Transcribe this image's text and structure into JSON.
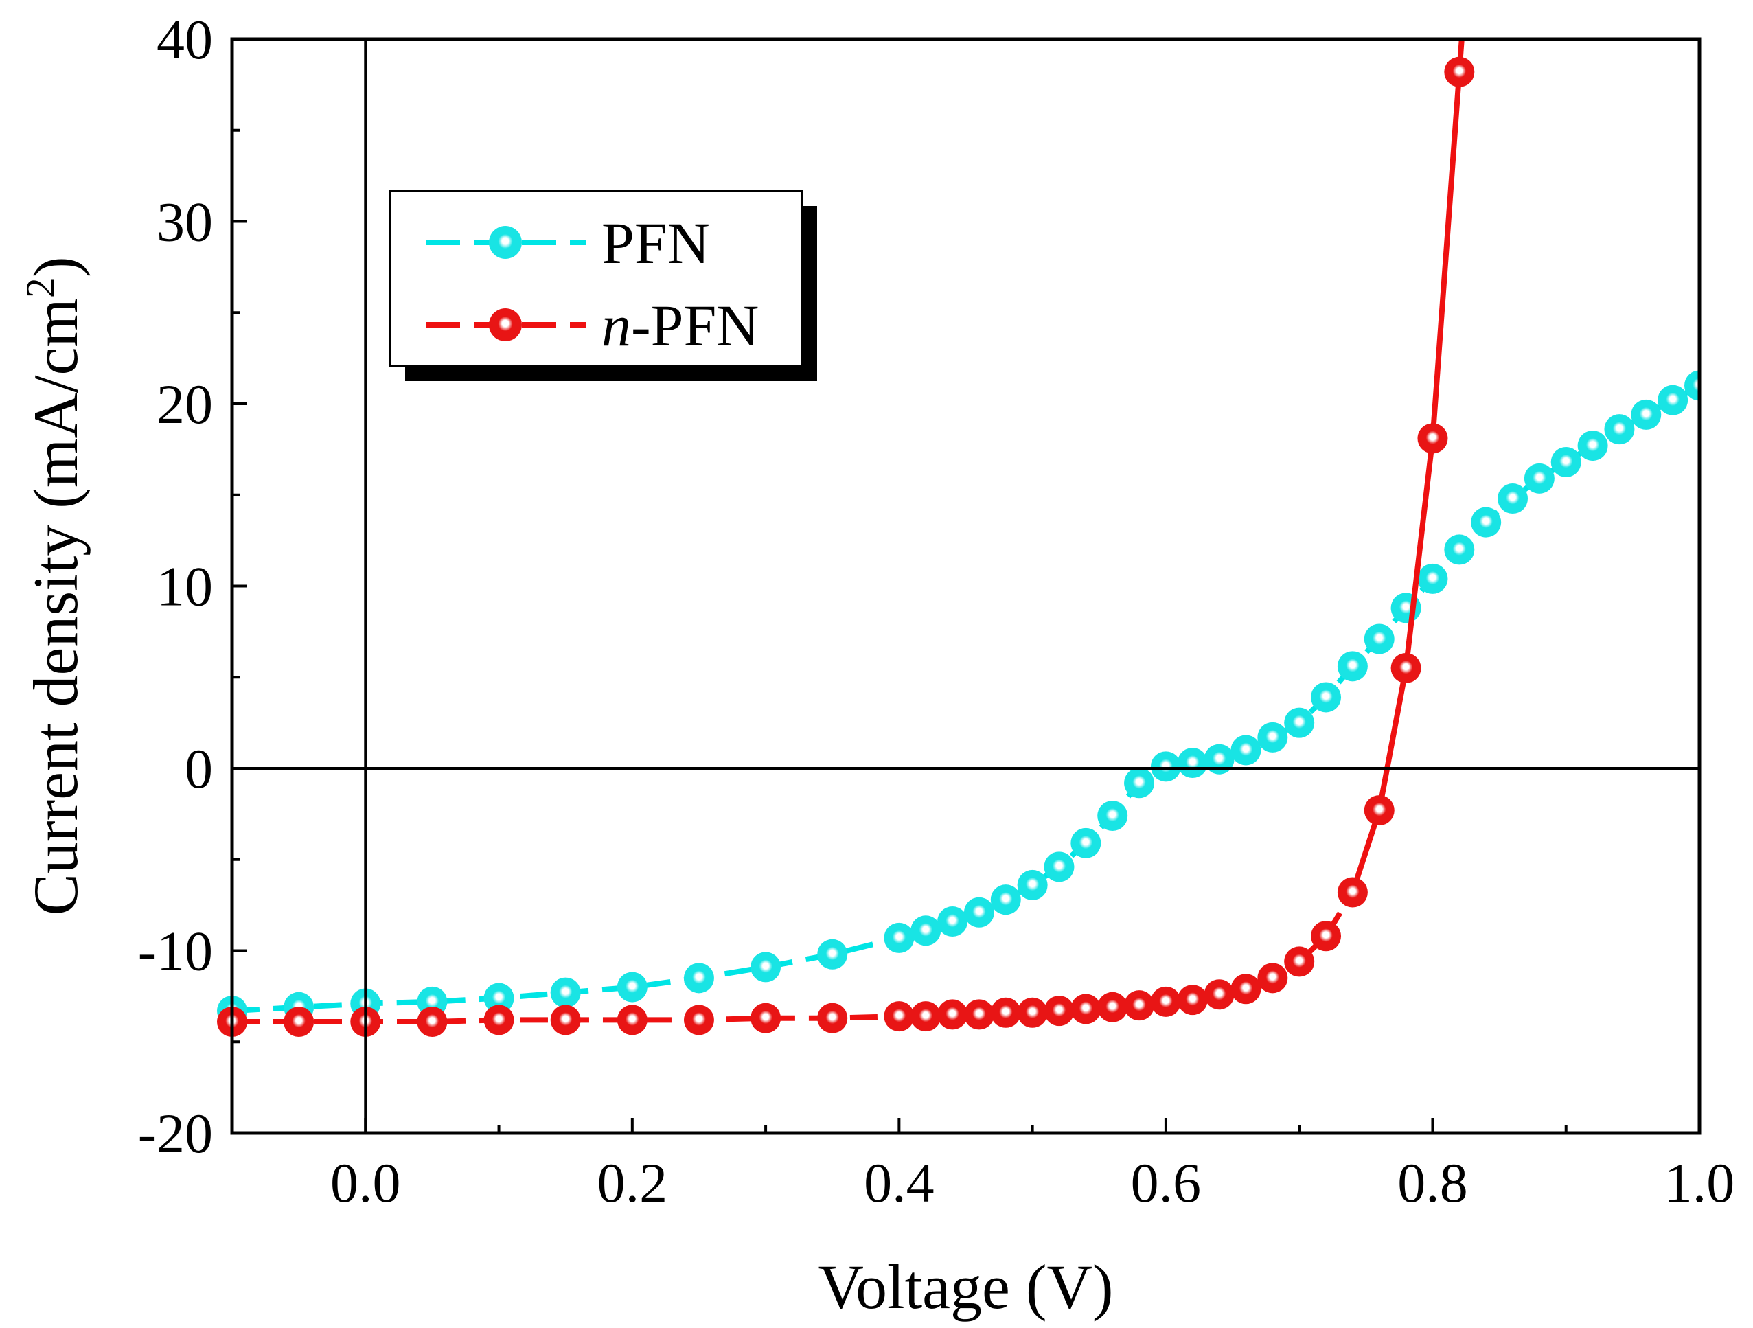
{
  "chart_data": {
    "type": "line",
    "title": "",
    "xlabel": "Voltage (V)",
    "ylabel_main": "Current density (mA/cm",
    "ylabel_sup": "2",
    "ylabel_close": ")",
    "xlim": [
      -0.1,
      1.0
    ],
    "ylim": [
      -20,
      40
    ],
    "x_ticks": [
      0.0,
      0.2,
      0.4,
      0.6,
      0.8,
      1.0
    ],
    "x_tick_labels": [
      "0.0",
      "0.2",
      "0.4",
      "0.6",
      "0.8",
      "1.0"
    ],
    "x_minor_ticks": [
      -0.1,
      0.1,
      0.3,
      0.5,
      0.7,
      0.9
    ],
    "y_ticks": [
      -20,
      -10,
      0,
      10,
      20,
      30,
      40
    ],
    "y_tick_labels": [
      "-20",
      "-10",
      "0",
      "10",
      "20",
      "30",
      "40"
    ],
    "y_minor_ticks": [
      -15,
      -5,
      5,
      15,
      25,
      35
    ],
    "zero_lines": {
      "x": 0,
      "y": 0
    },
    "legend": {
      "position": "top-left",
      "entries": [
        {
          "label": "PFN",
          "prefix_italic": "",
          "suffix": "PFN"
        },
        {
          "label": "n-PFN",
          "prefix_italic": "n",
          "suffix": "-PFN"
        }
      ]
    },
    "series": [
      {
        "name": "PFN",
        "color": "#00e5e5",
        "line_style": "dashed",
        "x": [
          -0.1,
          -0.05,
          0.0,
          0.05,
          0.1,
          0.15,
          0.2,
          0.25,
          0.3,
          0.35,
          0.4,
          0.42,
          0.44,
          0.46,
          0.48,
          0.5,
          0.52,
          0.54,
          0.56,
          0.58,
          0.6,
          0.62,
          0.64,
          0.66,
          0.68,
          0.7,
          0.72,
          0.74,
          0.76,
          0.78,
          0.8,
          0.82,
          0.84,
          0.86,
          0.88,
          0.9,
          0.92,
          0.94,
          0.96,
          0.98,
          1.0
        ],
        "y": [
          -13.3,
          -13.1,
          -12.9,
          -12.8,
          -12.6,
          -12.3,
          -12.0,
          -11.5,
          -10.9,
          -10.2,
          -9.3,
          -8.9,
          -8.4,
          -7.9,
          -7.2,
          -6.4,
          -5.4,
          -4.1,
          -2.6,
          -0.8,
          0.1,
          0.3,
          0.5,
          1.0,
          1.7,
          2.5,
          3.9,
          5.6,
          7.1,
          8.8,
          10.4,
          12.0,
          13.5,
          14.8,
          15.9,
          16.8,
          17.7,
          18.6,
          19.4,
          20.2,
          21.0
        ]
      },
      {
        "name": "n-PFN",
        "color": "#ee1111",
        "line_style": "dashed-then-solid",
        "solid_from_x": 0.74,
        "x": [
          -0.1,
          -0.05,
          0.0,
          0.05,
          0.1,
          0.15,
          0.2,
          0.25,
          0.3,
          0.35,
          0.4,
          0.42,
          0.44,
          0.46,
          0.48,
          0.5,
          0.52,
          0.54,
          0.56,
          0.58,
          0.6,
          0.62,
          0.64,
          0.66,
          0.68,
          0.7,
          0.72,
          0.74,
          0.76,
          0.78,
          0.8,
          0.82
        ],
        "y": [
          -13.9,
          -13.9,
          -13.9,
          -13.9,
          -13.8,
          -13.8,
          -13.8,
          -13.8,
          -13.7,
          -13.7,
          -13.6,
          -13.6,
          -13.5,
          -13.5,
          -13.4,
          -13.4,
          -13.3,
          -13.2,
          -13.1,
          -13.0,
          -12.8,
          -12.7,
          -12.4,
          -12.1,
          -11.5,
          -10.6,
          -9.2,
          -6.8,
          -2.3,
          5.5,
          18.1,
          38.2
        ]
      }
    ]
  }
}
